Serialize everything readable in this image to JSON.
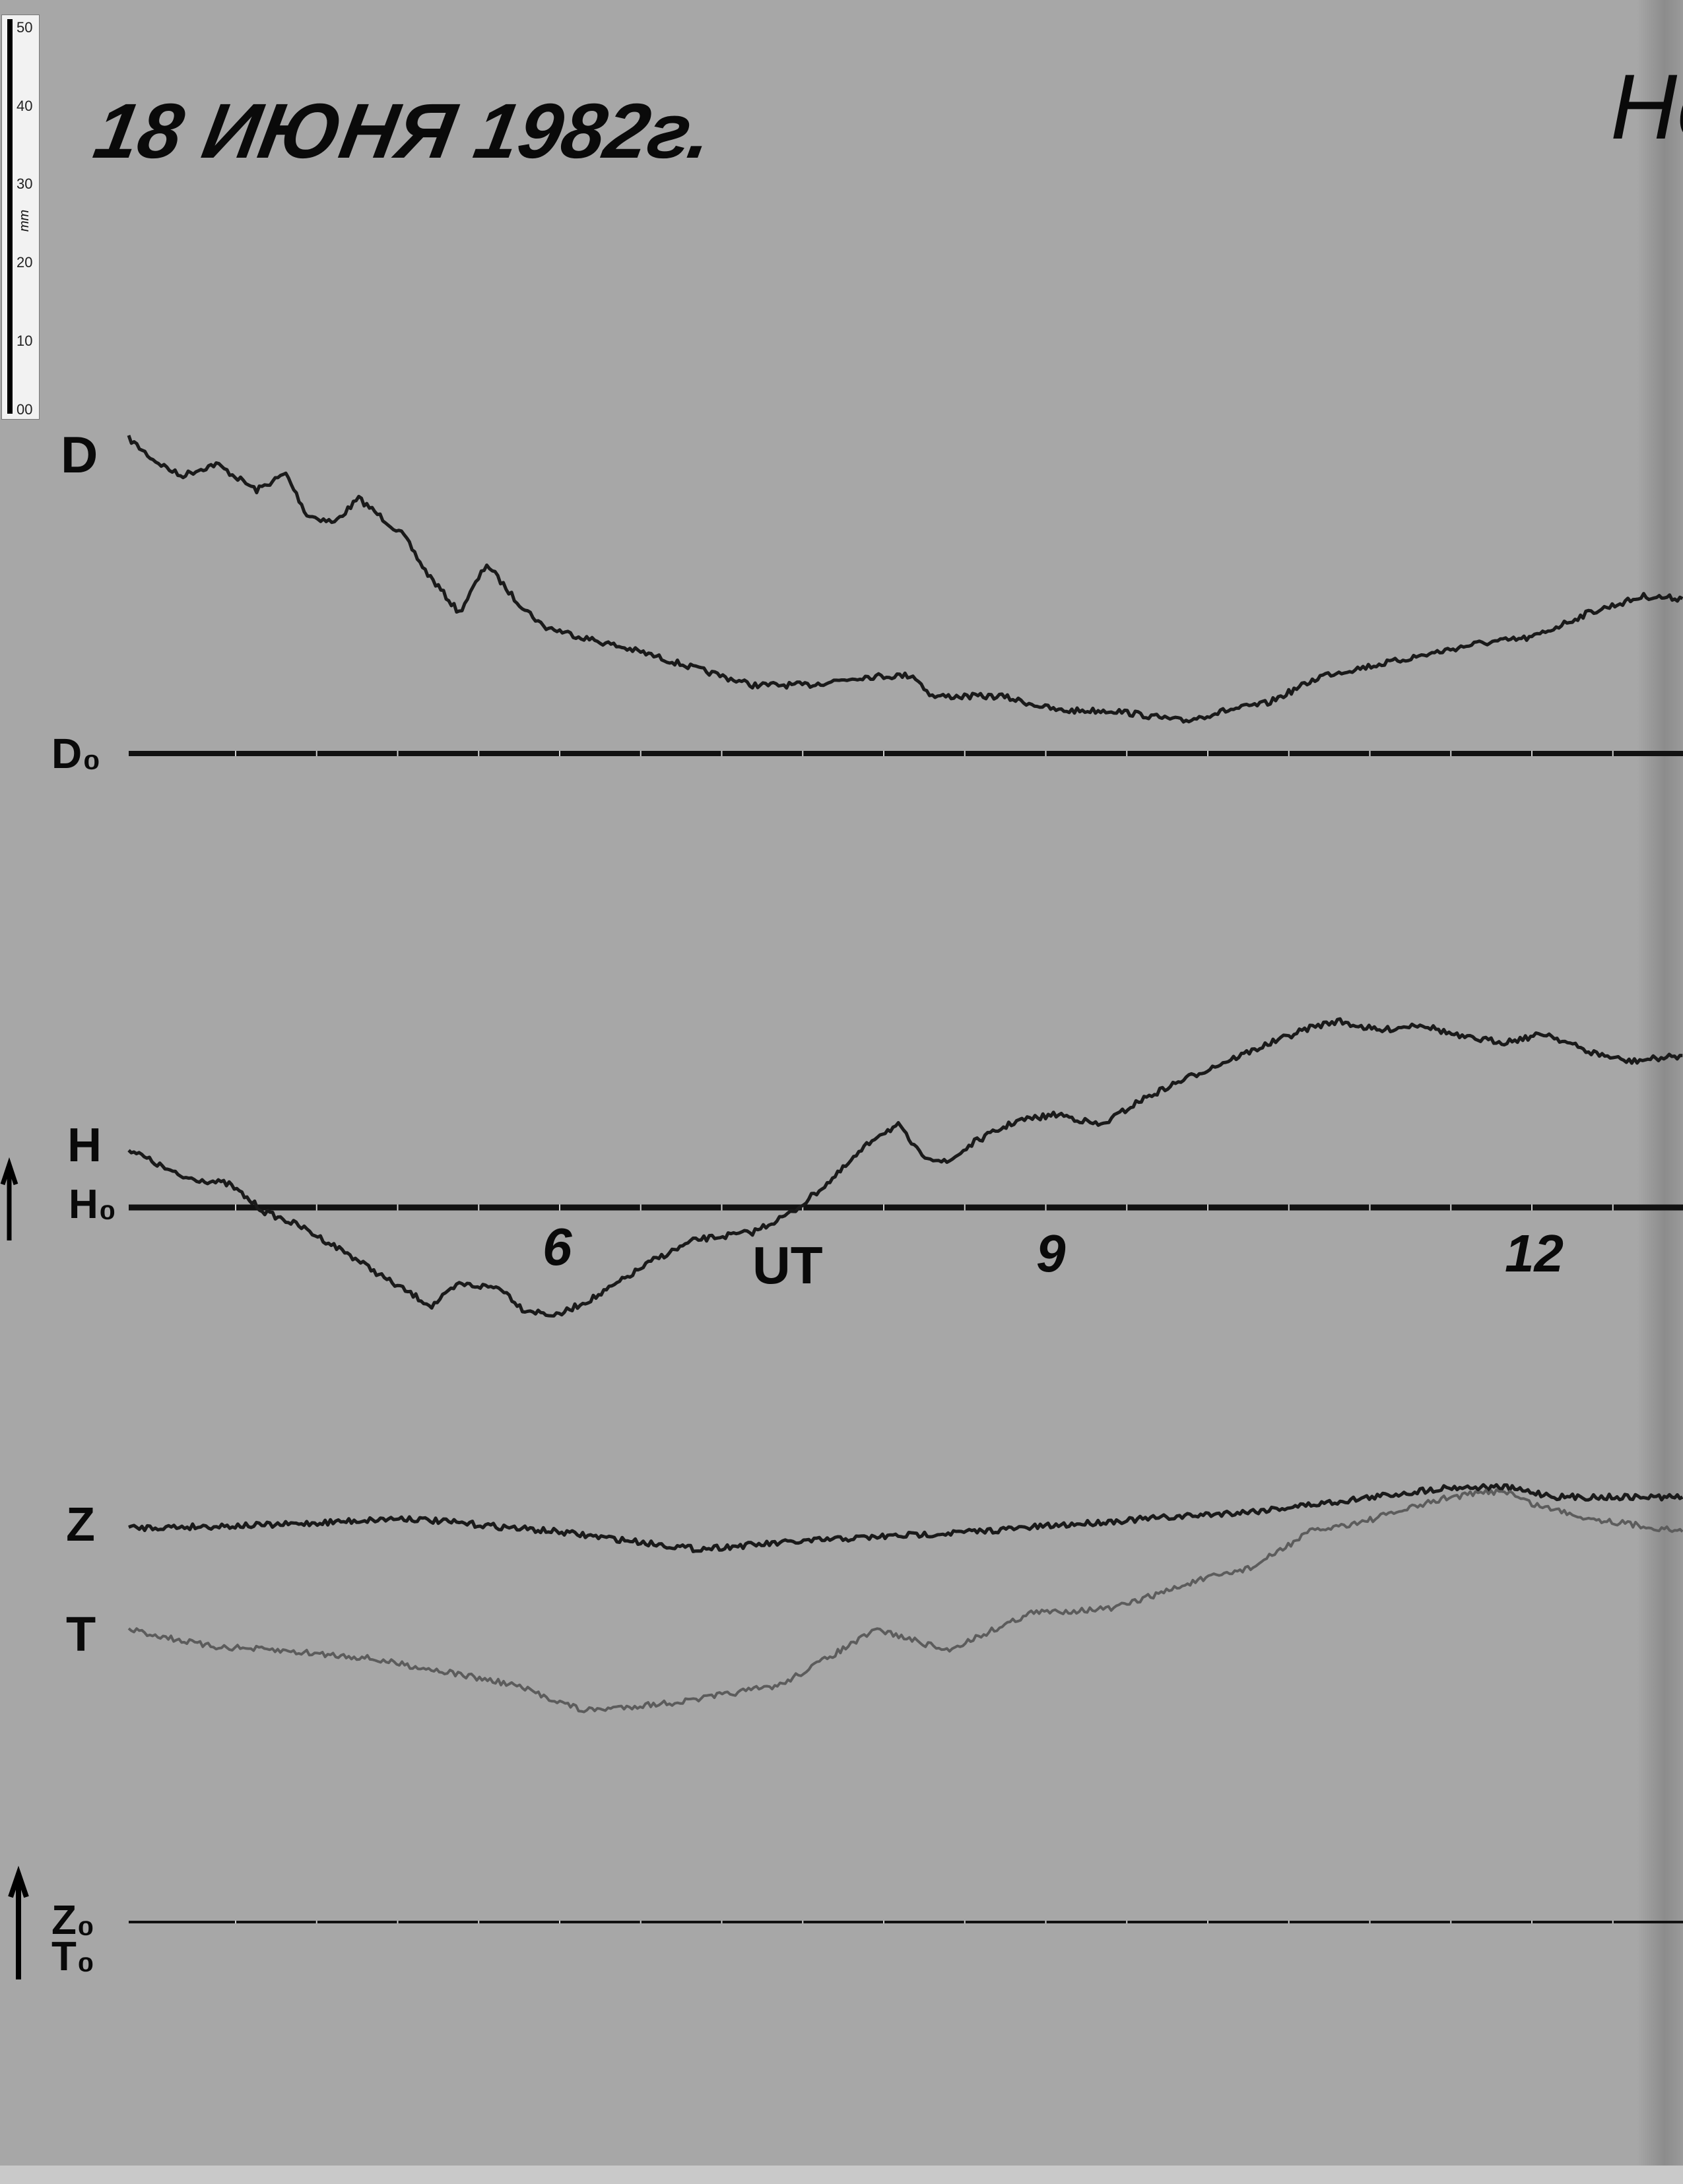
{
  "header": {
    "date": "18 ИЮНЯ 1982г.",
    "station_partial": "Нс"
  },
  "ruler": {
    "unit": "mm",
    "ticks": [
      "50",
      "40",
      "30",
      "20",
      "10",
      "00"
    ]
  },
  "colors": {
    "paper": "#a7a7a7",
    "trace": "#1a1a1a",
    "t_trace": "#5c5c5c"
  },
  "chart_data": {
    "type": "line",
    "title": "18 ИЮНЯ 1982г.",
    "xlabel": "UT",
    "x_ticks": [
      "6",
      "9",
      "12"
    ],
    "xlim": [
      3.34,
      12.93
    ],
    "y_unit": "mm above baseline (estimated from ruler)",
    "grid": false,
    "baselines": [
      {
        "label": "D₀"
      },
      {
        "label": "H₀"
      },
      {
        "label": "Z₀"
      },
      {
        "label": "T₀"
      }
    ],
    "series": [
      {
        "name": "D",
        "baseline": "D₀",
        "x": [
          3.34,
          3.49,
          3.66,
          3.88,
          4.13,
          4.31,
          4.44,
          4.61,
          4.76,
          5.04,
          5.17,
          5.38,
          5.55,
          5.72,
          5.9,
          6.15,
          6.5,
          6.84,
          7.19,
          7.53,
          7.87,
          8.18,
          8.3,
          8.73,
          9.08,
          9.42,
          9.85,
          10.11,
          10.37,
          10.71,
          11.14,
          11.66,
          12.0,
          12.35,
          12.69,
          12.93
        ],
        "y": [
          41.9,
          39.1,
          36.9,
          38.5,
          35.0,
          37.2,
          31.7,
          30.7,
          33.9,
          28.9,
          24.3,
          18.7,
          25.2,
          20.6,
          16.9,
          15.4,
          13.5,
          11.3,
          9.1,
          9.1,
          10.2,
          10.4,
          7.6,
          7.6,
          5.7,
          5.7,
          4.3,
          5.7,
          6.7,
          10.4,
          12.2,
          14.6,
          15.4,
          18.7,
          20.9,
          20.6
        ]
      },
      {
        "name": "H",
        "baseline": "H₀",
        "x": [
          3.34,
          3.66,
          3.96,
          4.18,
          4.39,
          4.69,
          4.95,
          5.21,
          5.38,
          5.64,
          5.77,
          5.98,
          6.24,
          6.58,
          6.84,
          7.19,
          7.44,
          7.7,
          7.96,
          8.09,
          8.22,
          8.39,
          8.56,
          8.82,
          9.08,
          9.34,
          9.59,
          9.85,
          10.11,
          10.37,
          10.63,
          10.8,
          11.06,
          11.31,
          11.57,
          11.83,
          12.09,
          12.35,
          12.6,
          12.93
        ],
        "y": [
          7.8,
          4.1,
          3.1,
          -0.6,
          -2.4,
          -6.1,
          -9.8,
          -13.1,
          -10.2,
          -10.7,
          -13.5,
          -14.4,
          -11.7,
          -7.0,
          -4.3,
          -3.3,
          -0.6,
          4.1,
          9.6,
          10.9,
          7.2,
          5.9,
          8.7,
          11.5,
          12.4,
          10.9,
          14.3,
          17.0,
          19.4,
          21.7,
          23.9,
          24.8,
          23.5,
          24.4,
          22.6,
          22.0,
          23.1,
          20.7,
          19.4,
          20.2
        ]
      },
      {
        "name": "Z",
        "baseline": "Z₀",
        "x": [
          3.34,
          4.26,
          5.04,
          5.98,
          6.84,
          7.7,
          8.56,
          9.42,
          10.28,
          10.8,
          11.49,
          11.83,
          12.17,
          12.93
        ],
        "y": [
          52.4,
          52.8,
          53.7,
          51.9,
          49.6,
          50.9,
          51.9,
          53.3,
          54.6,
          55.9,
          57.8,
          57.8,
          56.5,
          56.5
        ]
      },
      {
        "name": "T",
        "baseline": "T₀",
        "x": [
          3.34,
          3.83,
          4.26,
          4.78,
          5.29,
          5.72,
          6.15,
          6.76,
          7.36,
          7.96,
          8.39,
          8.91,
          9.42,
          9.94,
          10.28,
          10.63,
          10.97,
          11.49,
          11.83,
          12.0,
          12.35,
          12.93
        ],
        "y": [
          38.9,
          36.7,
          36.1,
          35.2,
          33.3,
          31.5,
          28.1,
          29.3,
          31.5,
          38.9,
          36.1,
          41.1,
          41.7,
          45.4,
          47.2,
          51.9,
          53.3,
          56.5,
          57.4,
          55.6,
          53.7,
          51.9
        ]
      }
    ]
  }
}
